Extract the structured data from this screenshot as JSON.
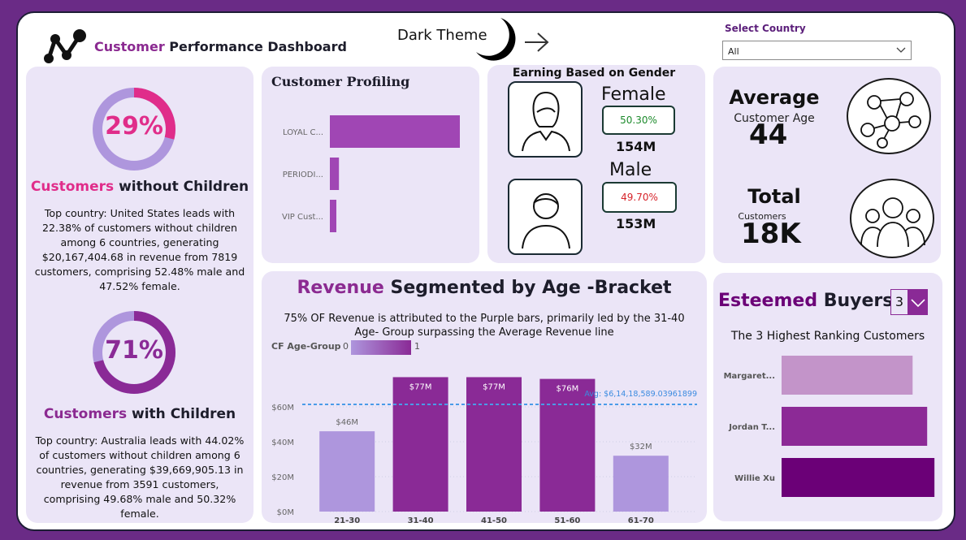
{
  "header": {
    "title_accent": "Customer",
    "title_rest": " Performance Dashboard",
    "theme_label": "Dark Theme",
    "select_label": "Select Country",
    "select_value": "All"
  },
  "without_children": {
    "percent": "29%",
    "percent_value": 0.29,
    "title_accent": "Customers",
    "title_rest": " without Children",
    "description": "Top country: United States leads with 22.38% of customers without children among 6 countries, generating $20,167,404.68 in revenue from 7819 customers, comprising 52.48% male and 47.52% female."
  },
  "with_children": {
    "percent": "71%",
    "percent_value": 0.71,
    "title_accent": "Customers",
    "title_rest": " with Children",
    "description": "Top country: Australia leads with 44.02% of customers without children among 6 countries, generating $39,669,905.13 in revenue from 3591 customers, comprising 49.68% male and 50.32% female."
  },
  "profiling": {
    "title": "Customer Profiling",
    "bars": [
      {
        "label": "LOYAL C...",
        "value": 100
      },
      {
        "label": "PERIODI...",
        "value": 7
      },
      {
        "label": "VIP Cust...",
        "value": 5
      }
    ]
  },
  "gender": {
    "title": "Earning Based on Gender",
    "female_label": "Female",
    "female_pct": "50.30%",
    "female_amount": "154M",
    "male_label": "Male",
    "male_pct": "49.70%",
    "male_amount": "153M"
  },
  "age": {
    "label": "Average",
    "sublabel": "Customer Age",
    "value": "44"
  },
  "total": {
    "label": "Total",
    "sublabel": "Customers",
    "value": "18K"
  },
  "revenue": {
    "title_accent": "Revenue",
    "title_rest": " Segmented by Age -Bracket",
    "subtitle": "75% OF Revenue is attributed to the Purple bars, primarily led by the 31-40 Age- Group surpassing the Average Revenue line",
    "legend_label": "CF Age-Group",
    "legend_min": "0",
    "legend_max": "1",
    "avg_label": "Avg: $6,14,18,589.03961899"
  },
  "buyers": {
    "title_accent": "Esteemed",
    "title_rest": " Buyers",
    "topn": "3",
    "subtitle": "The 3 Highest Ranking Customers",
    "bars": [
      {
        "label": "Margaret...",
        "value": 0.72,
        "color": "#c394c9"
      },
      {
        "label": "Jordan T...",
        "value": 0.8,
        "color": "#8c2a96"
      },
      {
        "label": "Willie Xu",
        "value": 0.84,
        "color": "#6b0077"
      }
    ]
  },
  "colors": {
    "accent": "#8b2a91",
    "pink": "#e02d8a",
    "light_bar": "#ae96dd",
    "dark_bar": "#8a2a96"
  },
  "chart_data": {
    "type": "bar",
    "title": "Revenue Segmented by Age -Bracket",
    "categories": [
      "21-30",
      "31-40",
      "41-50",
      "51-60",
      "61-70"
    ],
    "values": [
      46,
      77,
      77,
      76,
      32
    ],
    "data_labels": [
      "$46M",
      "$77M",
      "$77M",
      "$76M",
      "$32M"
    ],
    "cf_age_group": [
      0,
      1,
      1,
      1,
      0
    ],
    "y_ticks": [
      "$0M",
      "$20M",
      "$40M",
      "$60M"
    ],
    "ylim": [
      0,
      80
    ],
    "average": 61.42,
    "unit": "$M"
  }
}
